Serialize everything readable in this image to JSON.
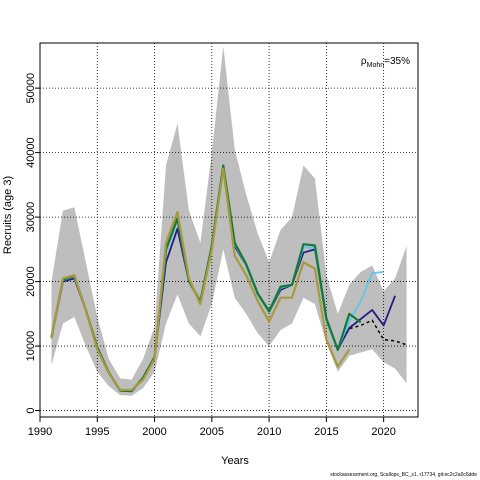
{
  "footer_text": "stockassessment.org, Scallops_BC_s1, r17734, git:ec2c2a0c6dde",
  "chart_data": {
    "type": "line",
    "title": "",
    "xlabel": "Years",
    "ylabel": "Recruits (age 3)",
    "annotation": {
      "prefix": "ρ",
      "subscript": "Mohn",
      "suffix": "=35%"
    },
    "xlim": [
      1990,
      2023
    ],
    "ylim": [
      -1000,
      57000
    ],
    "xticks": [
      1990,
      1995,
      2000,
      2005,
      2010,
      2015,
      2020
    ],
    "yticks": [
      0,
      10000,
      20000,
      30000,
      40000,
      50000
    ],
    "grid": true,
    "band": {
      "color": "#bebebe",
      "x": [
        1991,
        1992,
        1993,
        1994,
        1995,
        1996,
        1997,
        1998,
        1999,
        2000,
        2001,
        2002,
        2003,
        2004,
        2005,
        2006,
        2007,
        2008,
        2009,
        2010,
        2011,
        2012,
        2013,
        2014,
        2015,
        2016,
        2017,
        2018,
        2019,
        2020,
        2021,
        2022
      ],
      "lower": [
        7000,
        13500,
        14500,
        10000,
        6000,
        3800,
        2400,
        2300,
        3500,
        6000,
        13500,
        18000,
        13500,
        11500,
        16500,
        25000,
        17500,
        15000,
        12000,
        10000,
        12500,
        13500,
        17500,
        16500,
        10500,
        6000,
        8500,
        9000,
        9500,
        7500,
        6500,
        4200
      ],
      "upper": [
        20000,
        31000,
        31500,
        23000,
        14500,
        8000,
        5000,
        4800,
        8000,
        13000,
        38000,
        44500,
        31000,
        26000,
        40000,
        56500,
        40500,
        33500,
        27500,
        23000,
        28000,
        30000,
        38000,
        36000,
        21000,
        15000,
        19500,
        21500,
        22500,
        18500,
        20500,
        25500
      ]
    },
    "series": [
      {
        "color": "#000000",
        "dash": "3,3",
        "width": 1.5,
        "x": [
          2016,
          2017,
          2018,
          2019,
          2020,
          2021,
          2022
        ],
        "values": [
          9500,
          12700,
          13200,
          14000,
          11000,
          10800,
          10200
        ]
      },
      {
        "color": "#2a1a86",
        "width": 1.8,
        "x": [
          1991,
          1992,
          1993,
          1994,
          1995,
          1996,
          1997,
          1998,
          1999,
          2000,
          2001,
          2002,
          2003,
          2004,
          2005,
          2006,
          2007,
          2008,
          2009,
          2010,
          2011,
          2012,
          2013,
          2014,
          2015,
          2016,
          2017,
          2018,
          2019,
          2020,
          2021
        ],
        "values": [
          11200,
          20000,
          20500,
          15500,
          9800,
          5900,
          3100,
          3000,
          5000,
          8200,
          23000,
          28200,
          20000,
          16800,
          25500,
          37500,
          25500,
          22500,
          18000,
          15300,
          18700,
          19500,
          24500,
          25000,
          14000,
          9500,
          12800,
          14200,
          15600,
          13200,
          17800
        ]
      },
      {
        "color": "#5ec7e8",
        "width": 1.8,
        "x": [
          1991,
          1992,
          1993,
          1994,
          1995,
          1996,
          1997,
          1998,
          1999,
          2000,
          2001,
          2002,
          2003,
          2004,
          2005,
          2006,
          2007,
          2008,
          2009,
          2010,
          2011,
          2012,
          2013,
          2014,
          2015,
          2016,
          2017,
          2018,
          2019,
          2020
        ],
        "values": [
          11200,
          20200,
          20800,
          15500,
          9700,
          5900,
          3100,
          3000,
          5000,
          8200,
          24500,
          29500,
          20000,
          16800,
          25500,
          37800,
          25800,
          22500,
          18000,
          15300,
          19000,
          19500,
          25300,
          25200,
          14000,
          9500,
          13800,
          17000,
          21300,
          21500
        ]
      },
      {
        "color": "#117a3a",
        "width": 2.2,
        "x": [
          1991,
          1992,
          1993,
          1994,
          1995,
          1996,
          1997,
          1998,
          1999,
          2000,
          2001,
          2002,
          2003,
          2004,
          2005,
          2006,
          2007,
          2008,
          2009,
          2010,
          2011,
          2012,
          2013,
          2014,
          2015,
          2016,
          2017,
          2018
        ],
        "values": [
          11400,
          20300,
          20900,
          15600,
          9800,
          5900,
          3100,
          3000,
          5100,
          8300,
          25000,
          29800,
          20100,
          16900,
          25600,
          38000,
          26000,
          22700,
          18200,
          15400,
          19200,
          19500,
          25800,
          25600,
          14300,
          9400,
          15000,
          13700
        ]
      },
      {
        "color": "#a89a3c",
        "width": 2.2,
        "x": [
          1991,
          1992,
          1993,
          1994,
          1995,
          1996,
          1997,
          1998,
          1999,
          2000,
          2001,
          2002,
          2003,
          2004,
          2005,
          2006,
          2007,
          2008,
          2009,
          2010,
          2011,
          2012,
          2013,
          2014,
          2015,
          2016,
          2017
        ],
        "values": [
          11200,
          20500,
          21000,
          15500,
          9500,
          5800,
          3200,
          3200,
          4800,
          8000,
          26000,
          30800,
          20500,
          16500,
          25000,
          37500,
          24000,
          21000,
          17000,
          13800,
          17500,
          17500,
          23000,
          22000,
          11000,
          6800,
          9500
        ]
      }
    ]
  }
}
